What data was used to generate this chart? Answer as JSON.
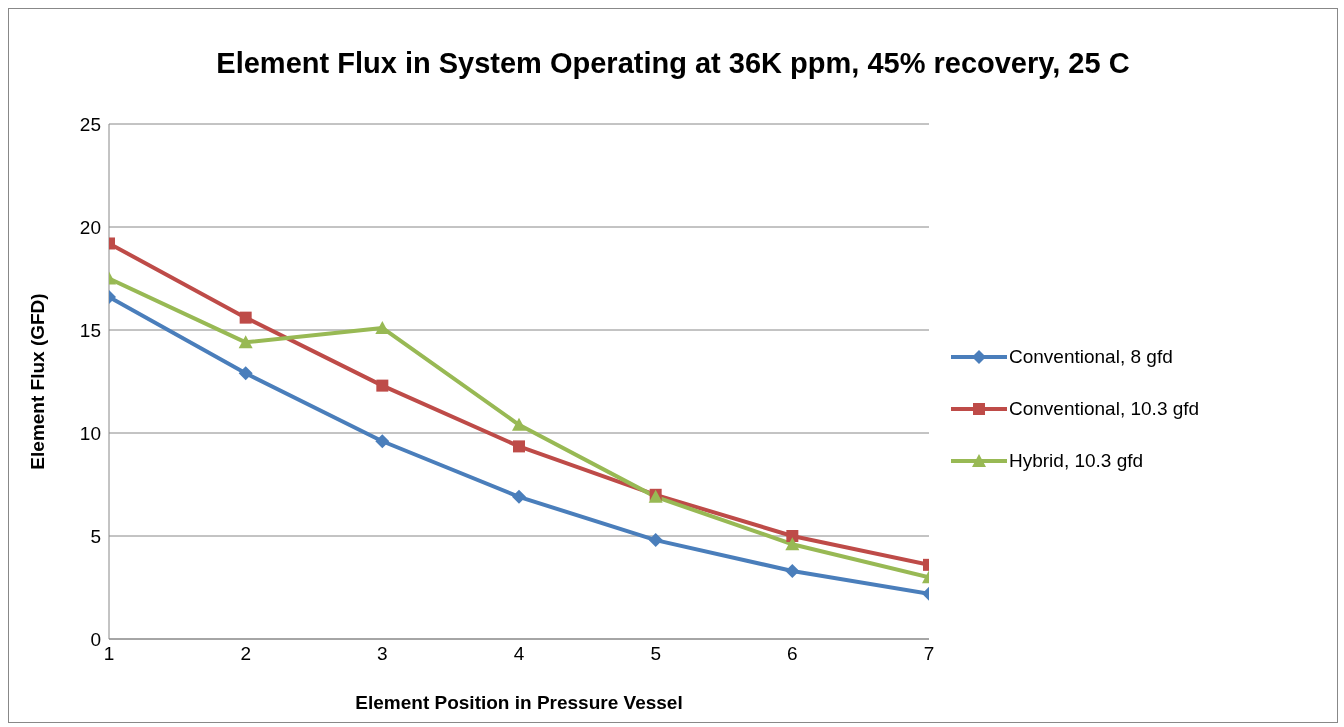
{
  "chart_data": {
    "type": "line",
    "title": "Element Flux in System Operating at 36K ppm, 45% recovery, 25 C",
    "xlabel": "Element Position in Pressure Vessel",
    "ylabel": "Element Flux  (GFD)",
    "x": [
      1,
      2,
      3,
      4,
      5,
      6,
      7
    ],
    "xlim": [
      1,
      7
    ],
    "xticks": [
      1,
      2,
      3,
      4,
      5,
      6,
      7
    ],
    "ylim": [
      0,
      25
    ],
    "yticks": [
      0,
      5,
      10,
      15,
      20,
      25
    ],
    "grid": "y",
    "legend": "right",
    "line_style": "solid",
    "series": [
      {
        "name": "Conventional, 8 gfd",
        "color": "#4a7ebb",
        "marker": "diamond",
        "values": [
          16.6,
          12.9,
          9.6,
          6.9,
          4.8,
          3.3,
          2.2
        ]
      },
      {
        "name": "Conventional, 10.3 gfd",
        "color": "#be4b48",
        "marker": "square",
        "values": [
          19.2,
          15.6,
          12.3,
          9.35,
          7.0,
          5.0,
          3.6
        ]
      },
      {
        "name": "Hybrid, 10.3 gfd",
        "color": "#98b954",
        "marker": "triangle",
        "values": [
          17.5,
          14.4,
          15.1,
          10.4,
          6.9,
          4.6,
          3.0
        ]
      }
    ]
  }
}
